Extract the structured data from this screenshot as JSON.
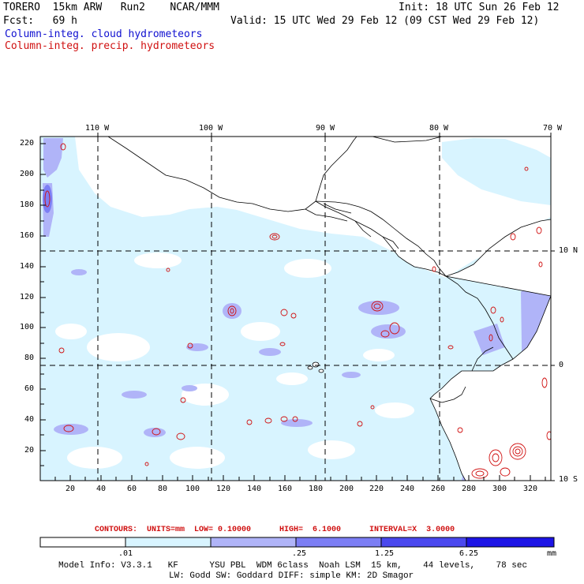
{
  "header": {
    "run_info": "TORERO  15km ARW   Run2    NCAR/MMM",
    "init": "Init: 18 UTC Sun 26 Feb 12",
    "fcst": "Fcst:   69 h",
    "valid": "Valid: 15 UTC Wed 29 Feb 12 (09 CST Wed 29 Feb 12)"
  },
  "legend": {
    "cloud": "Column-integ. cloud hydrometeors",
    "precip": "Column-integ. precip. hydrometeors"
  },
  "axes": {
    "top_lon_labels": [
      "110 W",
      "100 W",
      "90 W",
      "80 W",
      "70 W"
    ],
    "right_lat_labels": [
      "10 N",
      "0",
      "10 S"
    ],
    "x_ticks": [
      "20",
      "40",
      "60",
      "80",
      "100",
      "120",
      "140",
      "160",
      "180",
      "200",
      "220",
      "240",
      "260",
      "280",
      "300",
      "320"
    ],
    "y_ticks": [
      "20",
      "40",
      "60",
      "80",
      "100",
      "120",
      "140",
      "160",
      "180",
      "200",
      "220"
    ]
  },
  "contours_line": "CONTOURS:  UNITS=mm  LOW= 0.10000      HIGH=  6.1000      INTERVAL=X  3.0000",
  "colorbar": {
    "labels": [
      ".01",
      ".25",
      "1.25",
      "6.25"
    ],
    "unit": "mm",
    "colors": [
      "#ffffff",
      "#d8f4ff",
      "#b0b4f8",
      "#7c7ef4",
      "#4a48ee",
      "#1d14e6"
    ]
  },
  "model_info": {
    "line1": "Model Info: V3.3.1   KF      YSU PBL  WDM 6class  Noah LSM  15 km,    44 levels,    78 sec",
    "line2": "LW: Godd SW: Goddard DIFF: simple KM: 2D Smagor"
  },
  "colors": {
    "cloud": "#1010d0",
    "precip": "#d01010",
    "light_cloud": "#d8f4ff",
    "medium_cloud": "#b0b4f8",
    "heavy_cloud": "#7c7ef4"
  }
}
